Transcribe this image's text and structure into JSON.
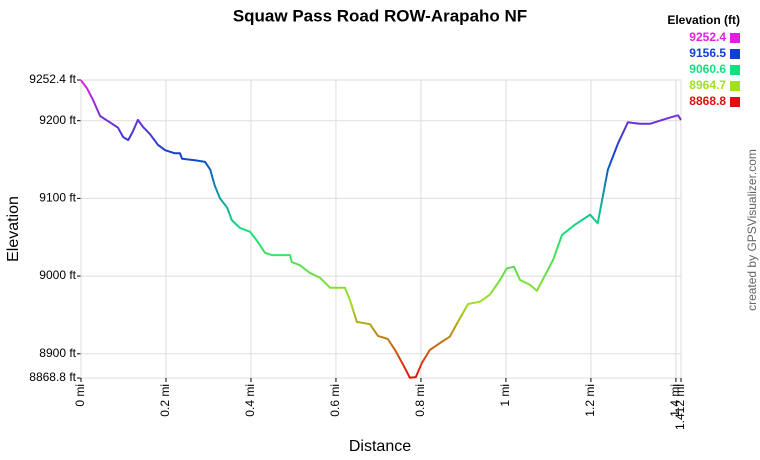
{
  "chart_data": {
    "type": "line",
    "title": "Squaw Pass Road ROW-Arapaho NF",
    "x_label": "Distance",
    "y_label": "Elevation",
    "credit": "created by GPSVisualizer.com",
    "legend_title": "Elevation (ft)",
    "legend": [
      {
        "value": 9252.4,
        "color": "#e020e0"
      },
      {
        "value": 9156.5,
        "color": "#1040d0"
      },
      {
        "value": 9060.6,
        "color": "#10e080"
      },
      {
        "value": 8964.7,
        "color": "#a0e020"
      },
      {
        "value": 8868.8,
        "color": "#e01010"
      }
    ],
    "xlim": [
      0,
      1.412
    ],
    "ylim": [
      8868.8,
      9252.4
    ],
    "xticks": [
      {
        "value": 0,
        "label": "0 mi"
      },
      {
        "value": 0.2,
        "label": "0.2 mi"
      },
      {
        "value": 0.4,
        "label": "0.4 mi"
      },
      {
        "value": 0.6,
        "label": "0.6 mi"
      },
      {
        "value": 0.8,
        "label": "0.8 mi"
      },
      {
        "value": 1,
        "label": "1 mi"
      },
      {
        "value": 1.2,
        "label": "1.2 mi"
      },
      {
        "value": 1.4,
        "label": "1.4 mi"
      },
      {
        "value": 1.412,
        "label": "1.412 mi"
      }
    ],
    "yticks": [
      {
        "value": 8868.8,
        "label": "8868.8 ft"
      },
      {
        "value": 8900,
        "label": "8900 ft"
      },
      {
        "value": 9000,
        "label": "9000 ft"
      },
      {
        "value": 9100,
        "label": "9100 ft"
      },
      {
        "value": 9200,
        "label": "9200 ft"
      },
      {
        "value": 9252.4,
        "label": "9252.4 ft"
      }
    ],
    "grid": true,
    "x": [
      0,
      0.014,
      0.028,
      0.045,
      0.068,
      0.087,
      0.099,
      0.111,
      0.122,
      0.134,
      0.146,
      0.162,
      0.181,
      0.198,
      0.221,
      0.233,
      0.238,
      0.268,
      0.292,
      0.304,
      0.315,
      0.327,
      0.344,
      0.355,
      0.374,
      0.398,
      0.416,
      0.433,
      0.449,
      0.492,
      0.496,
      0.515,
      0.539,
      0.562,
      0.586,
      0.621,
      0.633,
      0.649,
      0.68,
      0.699,
      0.722,
      0.739,
      0.758,
      0.774,
      0.788,
      0.802,
      0.821,
      0.845,
      0.868,
      0.887,
      0.911,
      0.939,
      0.962,
      0.986,
      1.002,
      1.019,
      1.033,
      1.056,
      1.073,
      1.092,
      1.111,
      1.132,
      1.162,
      1.179,
      1.198,
      1.216,
      1.24,
      1.264,
      1.287,
      1.315,
      1.339,
      1.362,
      1.386,
      1.405,
      1.412
    ],
    "values": [
      9252,
      9242,
      9227,
      9206,
      9198,
      9191,
      9179,
      9175,
      9186,
      9201,
      9192,
      9183,
      9169,
      9162,
      9158,
      9158,
      9151,
      9149,
      9147,
      9137,
      9116,
      9100,
      9088,
      9072,
      9062,
      9057,
      9044,
      9030,
      9027,
      9027,
      9018,
      9014,
      9004,
      8998,
      8985,
      8985,
      8969,
      8941,
      8938,
      8923,
      8919,
      8905,
      8886,
      8869,
      8870,
      8888,
      8905,
      8914,
      8922,
      8941,
      8964,
      8967,
      8976,
      8995,
      9010,
      9012,
      8995,
      8989,
      8981,
      9001,
      9021,
      9053,
      9066,
      9072,
      9079,
      9068,
      9137,
      9171,
      9198,
      9196,
      9196,
      9200,
      9204,
      9207,
      9201
    ]
  }
}
